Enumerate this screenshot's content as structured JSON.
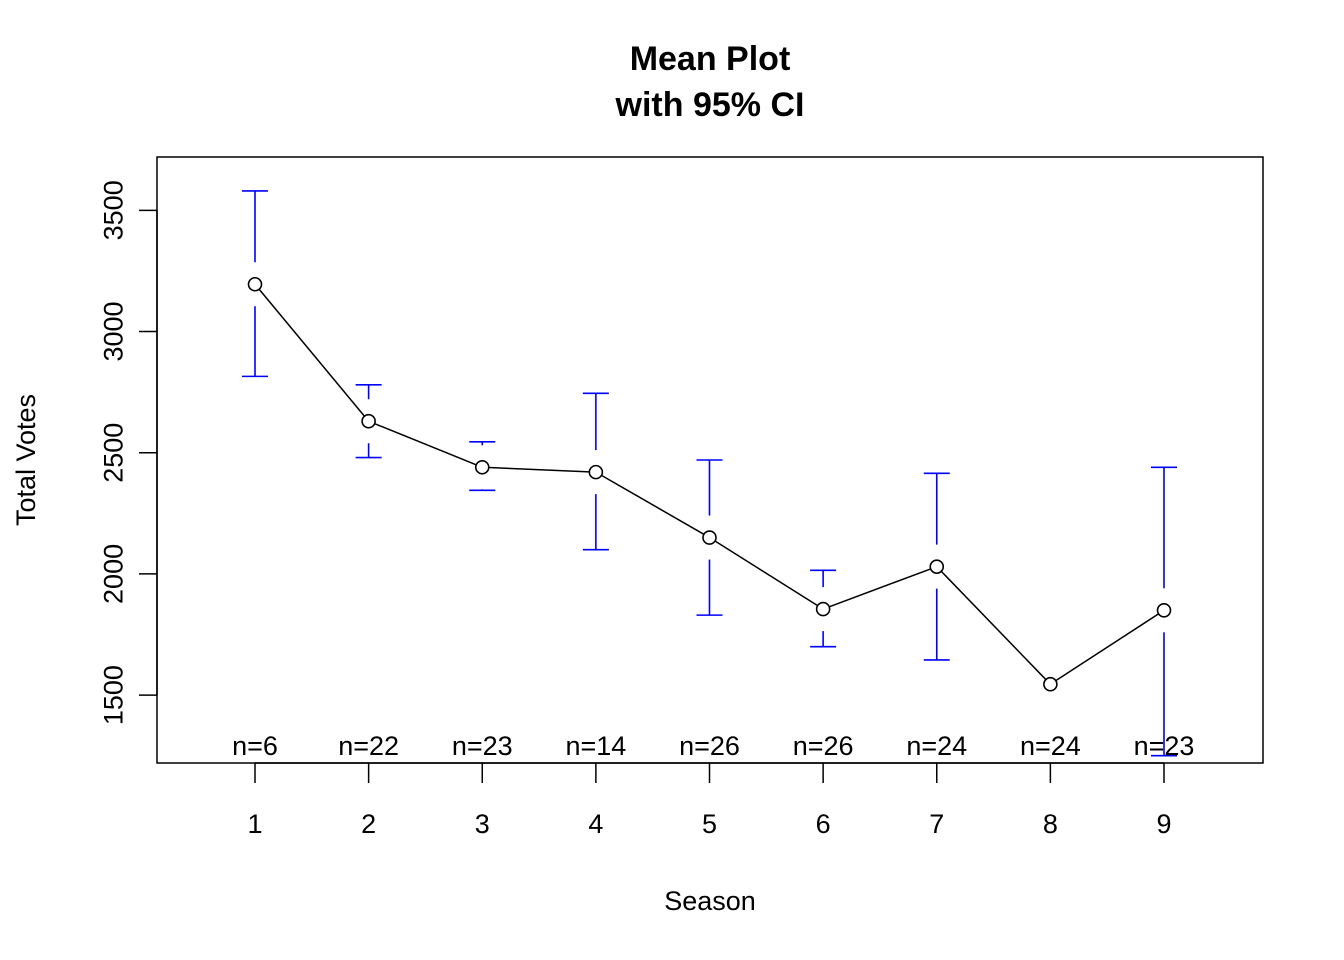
{
  "chart_data": {
    "type": "line",
    "title": "Mean Plot",
    "subtitle": "with 95% CI",
    "xlabel": "Season",
    "ylabel": "Total Votes",
    "x": [
      "1",
      "2",
      "3",
      "4",
      "5",
      "6",
      "7",
      "8",
      "9"
    ],
    "yticks": [
      "1500",
      "2000",
      "2500",
      "3000",
      "3500"
    ],
    "ylim": [
      1220,
      3720
    ],
    "grid": false,
    "series": [
      {
        "values": [
          3195,
          2630,
          2440,
          2420,
          2150,
          1855,
          2030,
          1545,
          1850
        ],
        "ci_lower": [
          2815,
          2480,
          2345,
          2100,
          1830,
          1700,
          1645,
          1545,
          1250
        ],
        "ci_upper": [
          3580,
          2780,
          2545,
          2745,
          2470,
          2015,
          2415,
          1545,
          2440
        ],
        "n_labels": [
          "n=6",
          "n=22",
          "n=23",
          "n=14",
          "n=26",
          "n=26",
          "n=24",
          "n=24",
          "n=23"
        ],
        "line_color": "#000000",
        "ci_color": "#0000FF"
      }
    ]
  }
}
